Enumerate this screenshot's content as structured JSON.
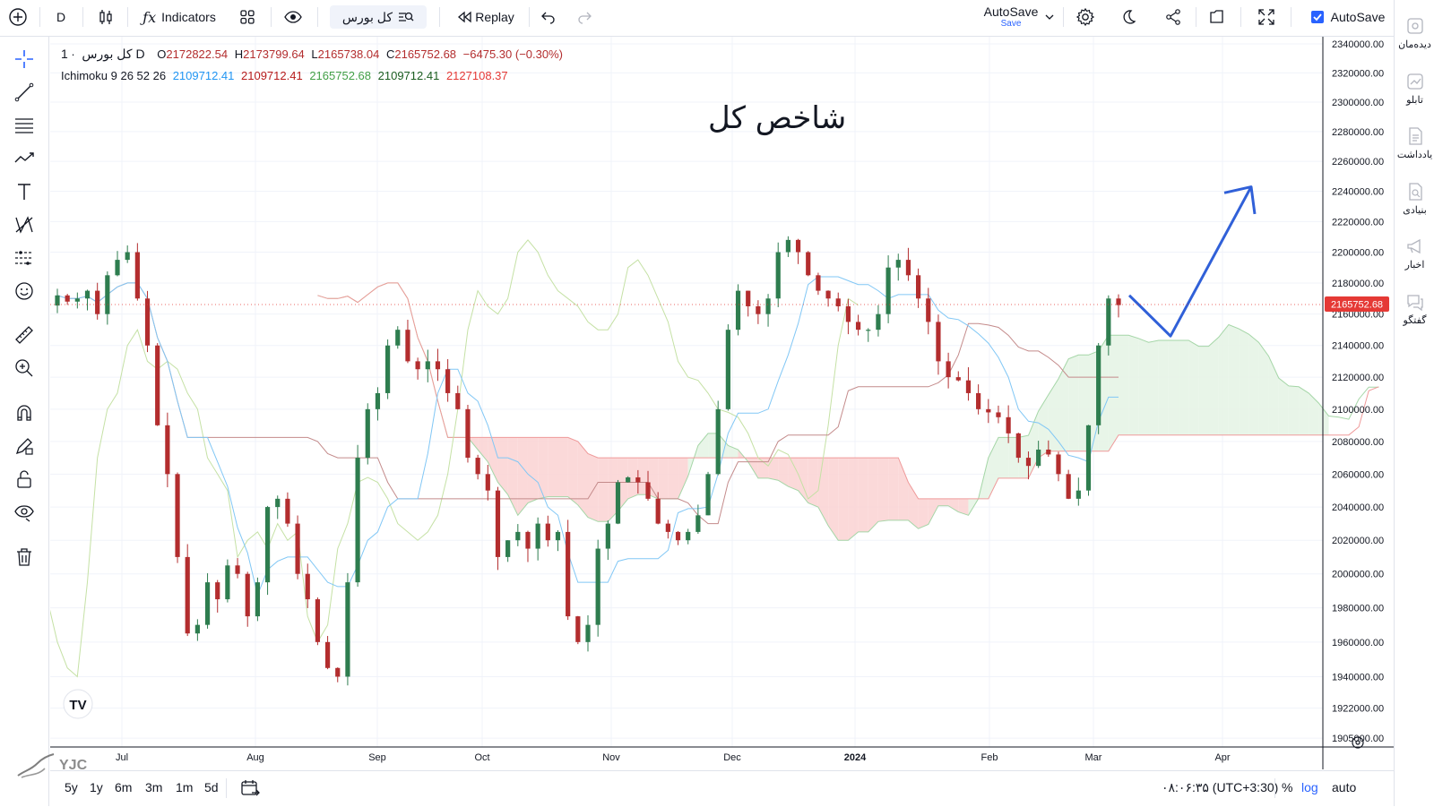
{
  "toolbar": {
    "interval": "D",
    "indicators_label": "Indicators",
    "symbol_search": "کل بورس",
    "replay_label": "Replay",
    "autosave_title": "AutoSave",
    "autosave_sub": "Save",
    "autosave_checkbox_label": "AutoSave"
  },
  "legend": {
    "symbol": "کل بورس",
    "timeframe": "1D",
    "open_label": "O",
    "open": "2172822.54",
    "high_label": "H",
    "high": "2173799.64",
    "low_label": "L",
    "low": "2165738.04",
    "close_label": "C",
    "close": "2165752.68",
    "change": "−6475.30 (−0.30%)",
    "indicator_name": "Ichimoku 9 26 52 26",
    "ind_values": [
      "2109712.41",
      "2109712.41",
      "2165752.68",
      "2109712.41",
      "2127108.37"
    ],
    "ind_colors": [
      "#2196f3",
      "#b71c1c",
      "#43a047",
      "#1b5e20",
      "#e53935"
    ]
  },
  "annotation_text": "شاخص کل",
  "price_tag": "2165752.68",
  "right_panel": [
    {
      "label": "دیده‌مان",
      "icon": "watchlist-icon"
    },
    {
      "label": "تابلو",
      "icon": "chart-icon"
    },
    {
      "label": "یادداشت",
      "icon": "note-icon"
    },
    {
      "label": "بنیادی",
      "icon": "fundamental-icon"
    },
    {
      "label": "اخبار",
      "icon": "news-icon"
    },
    {
      "label": "گفتگو",
      "icon": "chat-icon"
    }
  ],
  "bottom": {
    "ranges": [
      "5y",
      "1y",
      "6m",
      "3m",
      "1m",
      "5d"
    ],
    "clock": "۰۸:۰۶:۳۵ (UTC+3:30)",
    "percent": "%",
    "log": "log",
    "auto": "auto"
  },
  "watermark": "YJC",
  "colors": {
    "up": "#2e7d4f",
    "down": "#b32d2e",
    "cloud_up": "#e6f4e6",
    "cloud_down": "#fbd5d5",
    "arrow": "#3060d8"
  },
  "chart_data": {
    "type": "candlestick",
    "title": "شاخص کل",
    "x_ticks": [
      "Jul",
      "Aug",
      "Sep",
      "Oct",
      "Nov",
      "Dec",
      "2024",
      "Feb",
      "Mar",
      "Apr"
    ],
    "y_ticks": [
      "2340000.00",
      "2320000.00",
      "2300000.00",
      "2280000.00",
      "2260000.00",
      "2240000.00",
      "2220000.00",
      "2200000.00",
      "2180000.00",
      "2160000.00",
      "2140000.00",
      "2120000.00",
      "2100000.00",
      "2080000.00",
      "2060000.00",
      "2040000.00",
      "2020000.00",
      "2000000.00",
      "1980000.00",
      "1960000.00",
      "1940000.00",
      "1922000.00",
      "1905000.00"
    ],
    "ylim": [
      1900000,
      2345000
    ],
    "scale": "log",
    "last_close": 2165752.68,
    "close_path": [
      2172000,
      2168000,
      2170000,
      2175000,
      2160000,
      2185000,
      2195000,
      2200000,
      2170000,
      2140000,
      2090000,
      2060000,
      2010000,
      1965000,
      1970000,
      1995000,
      1985000,
      2005000,
      2000000,
      1975000,
      1995000,
      2040000,
      2045000,
      2030000,
      2000000,
      1985000,
      1960000,
      1945000,
      1940000,
      1995000,
      2070000,
      2100000,
      2110000,
      2140000,
      2150000,
      2130000,
      2125000,
      2130000,
      2125000,
      2110000,
      2100000,
      2070000,
      2060000,
      2050000,
      2010000,
      2020000,
      2025000,
      2015000,
      2030000,
      2020000,
      2025000,
      1975000,
      1960000,
      1970000,
      2015000,
      2030000,
      2055000,
      2058000,
      2055000,
      2045000,
      2030000,
      2025000,
      2020000,
      2025000,
      2035000,
      2060000,
      2100000,
      2150000,
      2175000,
      2165000,
      2160000,
      2170000,
      2200000,
      2208000,
      2200000,
      2185000,
      2175000,
      2170000,
      2165000,
      2155000,
      2150000,
      2150000,
      2160000,
      2190000,
      2195000,
      2185000,
      2170000,
      2155000,
      2130000,
      2120000,
      2118000,
      2110000,
      2100000,
      2098000,
      2095000,
      2085000,
      2070000,
      2065000,
      2075000,
      2072000,
      2060000,
      2045000,
      2050000,
      2090000,
      2140000,
      2170000,
      2165752.68
    ]
  }
}
